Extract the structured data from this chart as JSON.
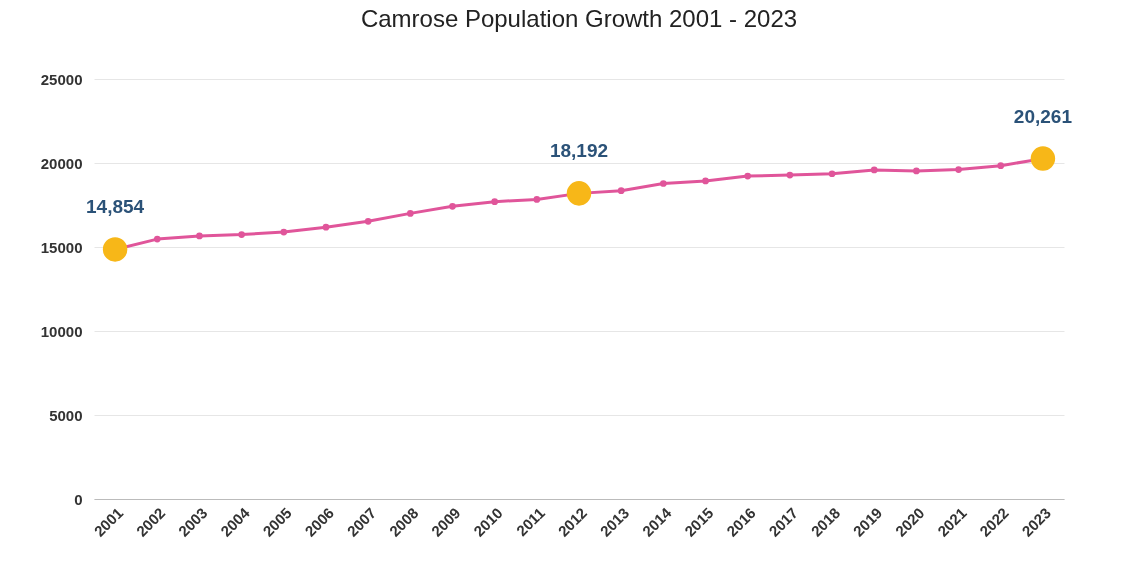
{
  "chart_data": {
    "type": "line",
    "title": "Camrose Population Growth 2001 - 2023",
    "categories": [
      "2001",
      "2002",
      "2003",
      "2004",
      "2005",
      "2006",
      "2007",
      "2008",
      "2009",
      "2010",
      "2011",
      "2012",
      "2013",
      "2014",
      "2015",
      "2016",
      "2017",
      "2018",
      "2019",
      "2020",
      "2021",
      "2022",
      "2023"
    ],
    "series": [
      {
        "color": "#e0559a",
        "marker": "circle",
        "values": [
          14854,
          15470,
          15660,
          15740,
          15890,
          16180,
          16530,
          17000,
          17420,
          17700,
          17830,
          18192,
          18350,
          18780,
          18930,
          19220,
          19280,
          19360,
          19590,
          19530,
          19610,
          19840,
          20261
        ],
        "value_labels": [
          "14,854",
          null,
          null,
          null,
          null,
          null,
          null,
          null,
          null,
          null,
          null,
          "18,192",
          null,
          null,
          null,
          null,
          null,
          null,
          null,
          null,
          null,
          null,
          "20,261"
        ]
      },
      {
        "type": "scatter",
        "color": "#f7b718",
        "marker": "circle",
        "values": [
          14854,
          null,
          null,
          null,
          null,
          null,
          null,
          null,
          null,
          null,
          null,
          18192,
          null,
          null,
          null,
          null,
          null,
          null,
          null,
          null,
          null,
          null,
          20261
        ]
      }
    ],
    "ylim": [
      0,
      25000
    ],
    "yticks": [
      0,
      5000,
      10000,
      15000,
      20000,
      25000
    ],
    "grid": "y"
  }
}
